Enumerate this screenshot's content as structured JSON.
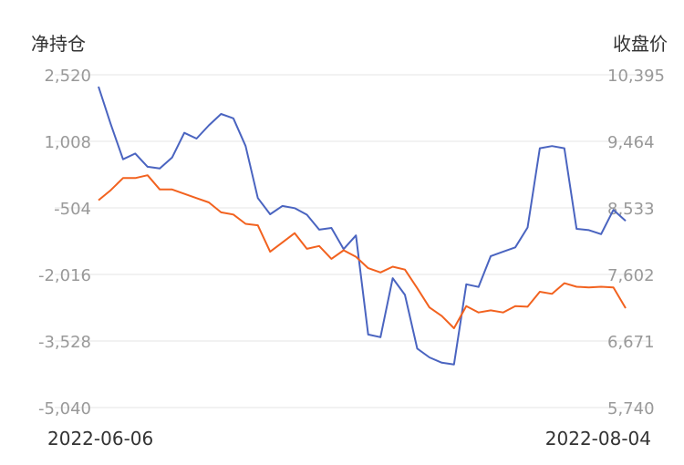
{
  "chart_data": {
    "type": "line",
    "left_axis_title": "净持仓",
    "right_axis_title": "收盘价",
    "left_ticks": [
      "2,520",
      "1,008",
      "-504",
      "-2,016",
      "-3,528",
      "-5,040"
    ],
    "right_ticks": [
      "10,395",
      "9,464",
      "8,533",
      "7,602",
      "6,671",
      "5,740"
    ],
    "left_range": [
      -5040,
      2520
    ],
    "right_range": [
      5740,
      10395
    ],
    "x_start_label": "2022-06-06",
    "x_end_label": "2022-08-04",
    "grid": true,
    "colors": {
      "net_position": "#4a64c0",
      "close_price": "#f2621f"
    },
    "series": [
      {
        "key": "net_position",
        "axis": "left",
        "values": [
          2250,
          1400,
          600,
          730,
          430,
          390,
          640,
          1200,
          1070,
          1370,
          1630,
          1530,
          900,
          -280,
          -650,
          -460,
          -510,
          -660,
          -1000,
          -960,
          -1440,
          -1130,
          -3380,
          -3440,
          -2100,
          -2480,
          -3700,
          -3900,
          -4020,
          -4060,
          -2240,
          -2300,
          -1600,
          -1500,
          -1400,
          -950,
          850,
          900,
          850,
          -980,
          -1010,
          -1100,
          -550,
          -800
        ]
      },
      {
        "key": "close_price",
        "axis": "right",
        "values": [
          8640,
          8780,
          8950,
          8950,
          8990,
          8790,
          8790,
          8730,
          8670,
          8610,
          8470,
          8440,
          8310,
          8290,
          7920,
          8050,
          8180,
          7960,
          8000,
          7820,
          7940,
          7850,
          7690,
          7630,
          7710,
          7670,
          7410,
          7140,
          7020,
          6850,
          7160,
          7070,
          7100,
          7070,
          7160,
          7150,
          7360,
          7330,
          7480,
          7430,
          7420,
          7430,
          7420,
          7130
        ]
      }
    ]
  }
}
